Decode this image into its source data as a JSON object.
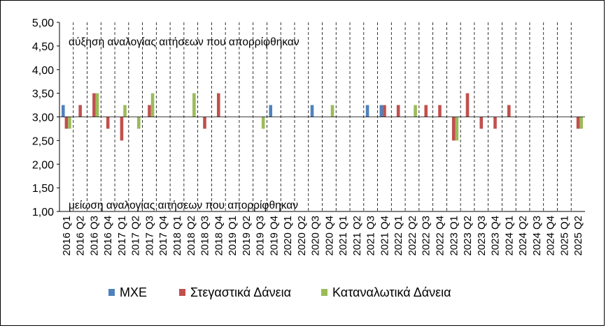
{
  "chart_data": {
    "type": "bar",
    "categories": [
      "2016 Q1",
      "2016 Q2",
      "2016 Q3",
      "2016 Q4",
      "2017 Q1",
      "2017 Q2",
      "2017 Q3",
      "2017 Q4",
      "2018 Q1",
      "2018 Q2",
      "2018 Q3",
      "2018 Q4",
      "2019 Q1",
      "2019 Q2",
      "2019 Q3",
      "2019 Q4",
      "2020 Q1",
      "2020 Q2",
      "2020 Q3",
      "2020 Q4",
      "2021 Q1",
      "2021 Q2",
      "2021 Q3",
      "2021 Q4",
      "2022 Q1",
      "2022 Q2",
      "2022 Q3",
      "2022 Q4",
      "2023 Q1",
      "2023 Q2",
      "2023 Q3",
      "2023 Q4",
      "2024 Q1",
      "2024 Q2",
      "2024 Q3",
      "2024 Q4",
      "2025 Q1",
      "2025 Q2"
    ],
    "series": [
      {
        "name": "ΜΧΕ",
        "color": "#4f81bd",
        "values": [
          3.25,
          3.0,
          3.0,
          3.0,
          3.0,
          3.0,
          3.0,
          3.0,
          3.0,
          3.0,
          3.0,
          3.0,
          3.0,
          3.0,
          3.0,
          3.25,
          3.0,
          3.0,
          3.25,
          3.0,
          3.0,
          3.0,
          3.25,
          3.25,
          3.0,
          3.0,
          3.0,
          3.0,
          3.0,
          3.0,
          3.0,
          3.0,
          3.0,
          3.0,
          3.0,
          3.0,
          3.0,
          3.0
        ]
      },
      {
        "name": "Στεγαστικά Δάνεια",
        "color": "#c0504d",
        "values": [
          2.75,
          3.25,
          3.5,
          2.75,
          2.5,
          3.0,
          3.25,
          3.0,
          3.0,
          3.0,
          2.75,
          3.5,
          3.0,
          3.0,
          3.0,
          3.0,
          3.0,
          3.0,
          3.0,
          3.0,
          3.0,
          3.0,
          3.0,
          3.25,
          3.25,
          3.0,
          3.25,
          3.25,
          2.5,
          3.5,
          2.75,
          2.75,
          3.25,
          3.0,
          3.0,
          3.0,
          3.0,
          2.75
        ]
      },
      {
        "name": "Καταναλωτικά Δάνεια",
        "color": "#9bbb59",
        "values": [
          2.75,
          3.0,
          3.5,
          3.0,
          3.25,
          2.75,
          3.5,
          3.0,
          3.0,
          3.5,
          3.0,
          3.0,
          3.0,
          3.0,
          2.75,
          3.0,
          3.0,
          3.0,
          3.0,
          3.25,
          3.0,
          3.0,
          3.0,
          3.0,
          3.0,
          3.25,
          3.0,
          3.0,
          2.5,
          3.0,
          3.0,
          3.0,
          3.0,
          3.0,
          3.0,
          3.0,
          3.0,
          2.75
        ]
      }
    ],
    "baseline": 3.0,
    "ylim": [
      1.0,
      5.0
    ],
    "yticks": [
      "1,00",
      "1,50",
      "2,00",
      "2,50",
      "3,00",
      "3,50",
      "4,00",
      "4,50",
      "5,00"
    ],
    "annotations": {
      "top": "αύξηση αναλογίας αιτήσεων που απορρίφθηκαν",
      "bottom": "μείωση αναλογίας αιτήσεων που απορρίφθηκαν"
    },
    "grid": "vertical dashed",
    "legend_position": "bottom"
  }
}
